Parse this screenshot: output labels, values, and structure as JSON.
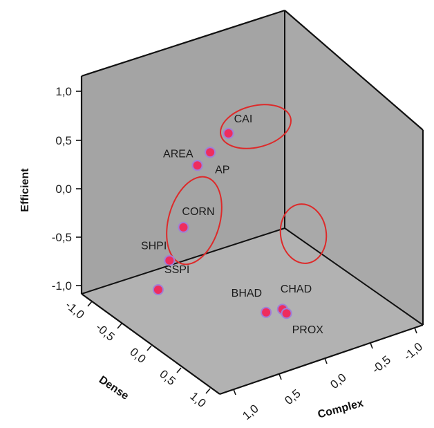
{
  "chart_data": {
    "type": "scatter",
    "title": "",
    "axes": {
      "x": {
        "label": "Complex",
        "ticks": [
          "1,0",
          "0,5",
          "0,0",
          "-0,5",
          "-1,0"
        ],
        "range": [
          -1.0,
          1.0
        ]
      },
      "y": {
        "label": "Efficient",
        "ticks": [
          "1,0",
          "0,5",
          "0,0",
          "-0,5",
          "-1,0"
        ],
        "range": [
          -1.0,
          1.0
        ]
      },
      "z": {
        "label": "Dense",
        "ticks": [
          "-1,0",
          "-0,5",
          "0,0",
          "0,5",
          "1,0"
        ],
        "range": [
          -1.0,
          1.0
        ]
      }
    },
    "points": [
      {
        "label": "CAI",
        "complex": -0.14,
        "efficient": 0.33,
        "dense": -0.55
      },
      {
        "label": "AREA",
        "complex": 0.2,
        "efficient": 0.16,
        "dense": -0.5
      },
      {
        "label": "AP",
        "complex": 0.04,
        "efficient": 0.21,
        "dense": -0.55
      },
      {
        "label": "CORN",
        "complex": 0.46,
        "efficient": -0.25,
        "dense": -0.32
      },
      {
        "label": "SHPI",
        "complex": 0.61,
        "efficient": -0.5,
        "dense": -0.3
      },
      {
        "label": "SSPI",
        "complex": 0.79,
        "efficient": -0.67,
        "dense": -0.2
      },
      {
        "label": "BHAD",
        "complex": 0.04,
        "efficient": -0.9,
        "dense": 0.26
      },
      {
        "label": "CHAD",
        "complex": -0.08,
        "efficient": -0.88,
        "dense": 0.32
      },
      {
        "label": "PROX",
        "complex": -0.12,
        "efficient": -0.93,
        "dense": 0.32
      }
    ],
    "clusters": [
      {
        "members": [
          "AREA",
          "AP",
          "CAI"
        ]
      },
      {
        "members": [
          "CORN",
          "SHPI",
          "SSPI"
        ]
      },
      {
        "members": [
          "BHAD",
          "CHAD",
          "PROX"
        ]
      }
    ],
    "point_color": "#ee2d5e",
    "point_outline": "#9f7fd8",
    "cluster_color": "#dd2a2a",
    "panel_colors": {
      "back": "#a4a4a4",
      "side": "#a9a9a9",
      "floor": "#b2b2b2"
    },
    "grid": false,
    "legend": "none"
  }
}
